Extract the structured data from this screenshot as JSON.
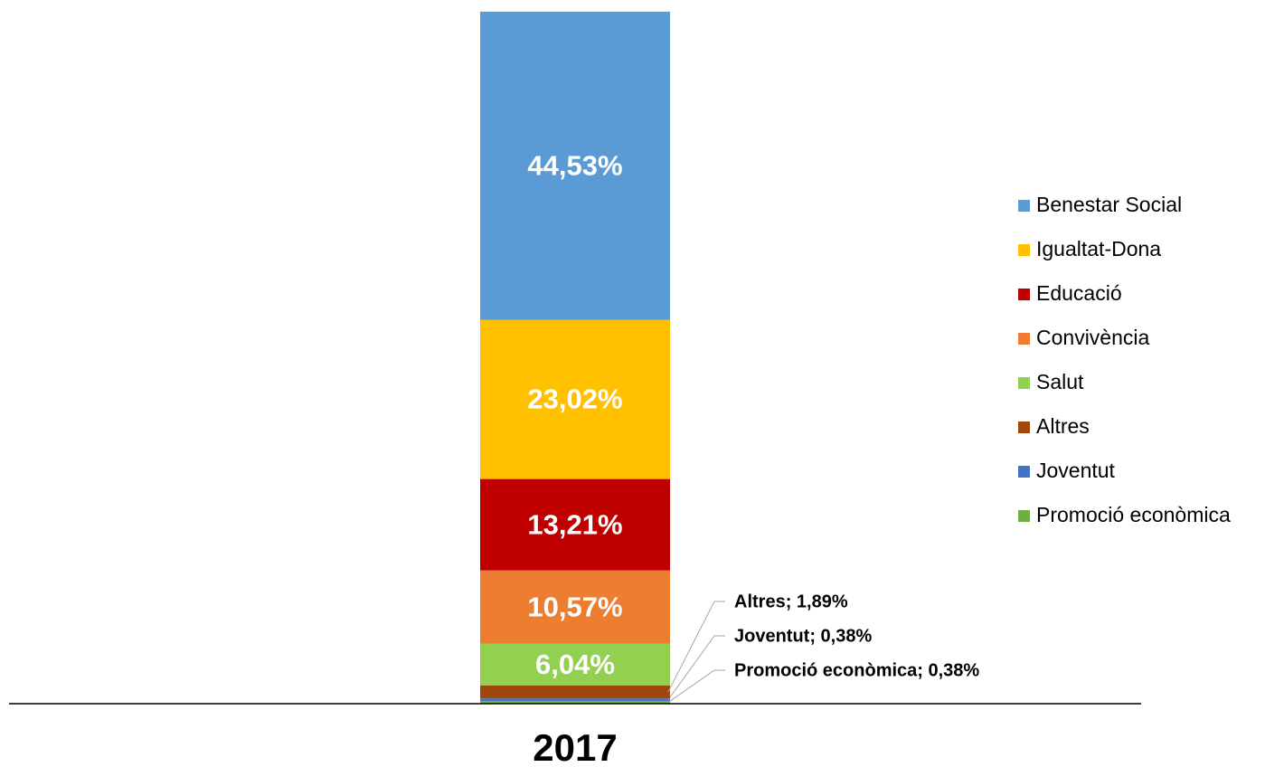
{
  "chart_data": {
    "type": "stacked_bar",
    "categories": [
      "2017"
    ],
    "ylim": [
      0,
      100
    ],
    "legend": "right",
    "series": [
      {
        "name": "Benestar Social",
        "color": "#5b9bd5",
        "values": [
          44.53
        ],
        "value_labels": [
          "44,53%"
        ]
      },
      {
        "name": "Igualtat-Dona",
        "color": "#ffc000",
        "values": [
          23.02
        ],
        "value_labels": [
          "23,02%"
        ]
      },
      {
        "name": "Educació",
        "color": "#c00000",
        "values": [
          13.21
        ],
        "value_labels": [
          "13,21%"
        ]
      },
      {
        "name": "Convivència",
        "color": "#ed7d31",
        "values": [
          10.57
        ],
        "value_labels": [
          "10,57%"
        ]
      },
      {
        "name": "Salut",
        "color": "#92d050",
        "values": [
          6.04
        ],
        "value_labels": [
          "6,04%"
        ]
      },
      {
        "name": "Altres",
        "color": "#9e480e",
        "values": [
          1.89
        ],
        "value_labels": [
          "Altres; 1,89%"
        ]
      },
      {
        "name": "Joventut",
        "color": "#4472c4",
        "values": [
          0.38
        ],
        "value_labels": [
          "Joventut; 0,38%"
        ]
      },
      {
        "name": "Promoció econòmica",
        "color": "#70ad47",
        "values": [
          0.38
        ],
        "value_labels": [
          "Promoció econòmica; 0,38%"
        ]
      }
    ]
  }
}
